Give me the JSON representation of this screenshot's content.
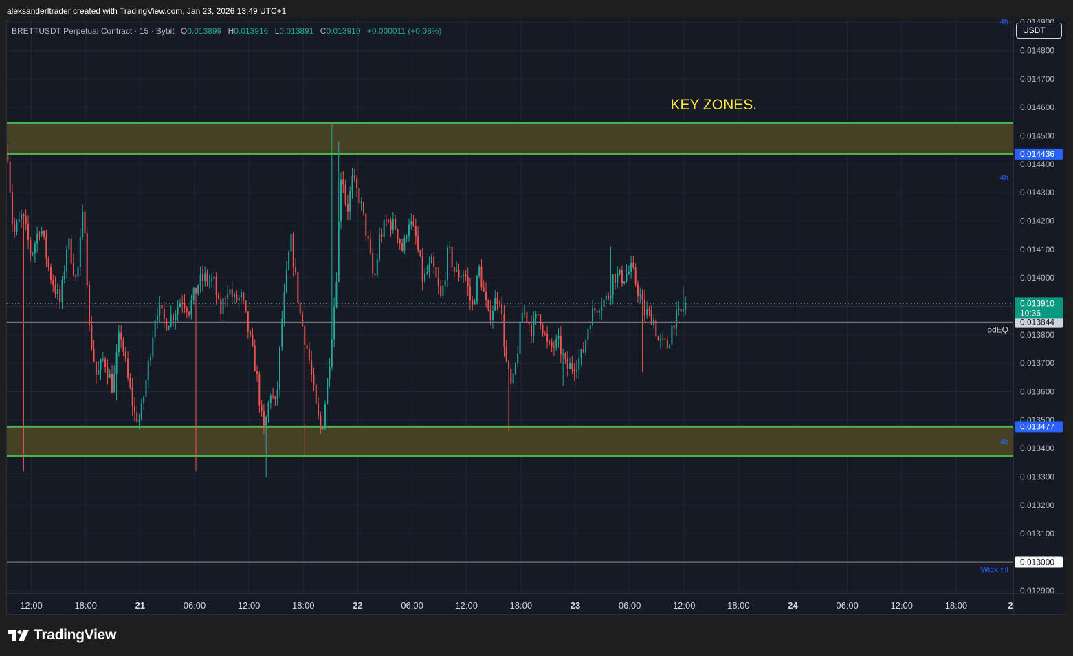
{
  "caption": "aleksanderltrader created with TradingView.com, Jan 23, 2026 13:49 UTC+1",
  "legend": {
    "symbol": "BRETTUSDT Perpetual Contract · 15 · Bybit",
    "open_label": "O",
    "open": "0.013899",
    "high_label": "H",
    "high": "0.013916",
    "low_label": "L",
    "low": "0.013891",
    "close_label": "C",
    "close": "0.013910",
    "change": "+0.000011 (+0.08%)"
  },
  "currency_button": "USDT",
  "footer": {
    "brand": "TradingView"
  },
  "colors": {
    "up": "#26a69a",
    "down": "#ef5350",
    "zone_fill": "#454124",
    "zone_border": "#4caf50",
    "annotation": "#ffeb3b",
    "tag_blue": "#2962ff",
    "tag_last": "#089981"
  },
  "chart_data": {
    "type": "candlestick",
    "grid": true,
    "y_scale": "linear",
    "ylim": [
      0.01289,
      0.01491
    ],
    "y_ticks": [
      "0.014900",
      "0.014800",
      "0.014700",
      "0.014600",
      "0.014500",
      "0.014400",
      "0.014300",
      "0.014200",
      "0.014100",
      "0.014000",
      "0.013900",
      "0.013800",
      "0.013700",
      "0.013600",
      "0.013500",
      "0.013400",
      "0.013300",
      "0.013200",
      "0.013100",
      "0.013000",
      "0.012900"
    ],
    "x_ticks": [
      {
        "label": "12:00",
        "bold": false
      },
      {
        "label": "18:00",
        "bold": false
      },
      {
        "label": "21",
        "bold": true
      },
      {
        "label": "06:00",
        "bold": false
      },
      {
        "label": "12:00",
        "bold": false
      },
      {
        "label": "18:00",
        "bold": false
      },
      {
        "label": "22",
        "bold": true
      },
      {
        "label": "06:00",
        "bold": false
      },
      {
        "label": "12:00",
        "bold": false
      },
      {
        "label": "18:00",
        "bold": false
      },
      {
        "label": "23",
        "bold": true
      },
      {
        "label": "06:00",
        "bold": false
      },
      {
        "label": "12:00",
        "bold": false
      },
      {
        "label": "18:00",
        "bold": false
      },
      {
        "label": "24",
        "bold": true
      },
      {
        "label": "06:00",
        "bold": false
      },
      {
        "label": "12:00",
        "bold": false
      },
      {
        "label": "18:00",
        "bold": false
      },
      {
        "label": "2",
        "bold": true
      }
    ],
    "x_ticks_hours": [
      12,
      18,
      24,
      30,
      36,
      42,
      48,
      54,
      60,
      66,
      72,
      78,
      84,
      90,
      96,
      102,
      108,
      114,
      120
    ],
    "x_range_hours": [
      9.3,
      120.3
    ],
    "series_path": [
      [
        9.4,
        0.01444
      ],
      [
        10.0,
        0.01415
      ],
      [
        11.0,
        0.01422
      ],
      [
        12.0,
        0.01408
      ],
      [
        13.0,
        0.01419
      ],
      [
        14.0,
        0.01402
      ],
      [
        15.2,
        0.01391
      ],
      [
        16.0,
        0.01414
      ],
      [
        17.0,
        0.01398
      ],
      [
        17.8,
        0.01426
      ],
      [
        18.4,
        0.01382
      ],
      [
        19.2,
        0.01365
      ],
      [
        20.0,
        0.01372
      ],
      [
        21.0,
        0.01361
      ],
      [
        21.8,
        0.01382
      ],
      [
        22.6,
        0.01365
      ],
      [
        23.4,
        0.01352
      ],
      [
        24.0,
        0.0135
      ],
      [
        24.8,
        0.01367
      ],
      [
        25.8,
        0.0139
      ],
      [
        26.8,
        0.01384
      ],
      [
        27.8,
        0.01388
      ],
      [
        28.6,
        0.01393
      ],
      [
        29.4,
        0.01389
      ],
      [
        30.4,
        0.01398
      ],
      [
        31.2,
        0.014
      ],
      [
        32.2,
        0.01398
      ],
      [
        32.8,
        0.01387
      ],
      [
        33.6,
        0.01397
      ],
      [
        34.4,
        0.01392
      ],
      [
        35.2,
        0.01393
      ],
      [
        36.0,
        0.0138
      ],
      [
        36.8,
        0.01367
      ],
      [
        37.6,
        0.01345
      ],
      [
        38.4,
        0.0136
      ],
      [
        39.0,
        0.01354
      ],
      [
        39.6,
        0.01384
      ],
      [
        40.6,
        0.01414
      ],
      [
        41.6,
        0.01388
      ],
      [
        42.6,
        0.01372
      ],
      [
        43.4,
        0.01354
      ],
      [
        44.0,
        0.01345
      ],
      [
        44.8,
        0.01368
      ],
      [
        45.6,
        0.01398
      ],
      [
        46.2,
        0.0144
      ],
      [
        46.8,
        0.01423
      ],
      [
        47.4,
        0.01434
      ],
      [
        48.2,
        0.01428
      ],
      [
        49.0,
        0.01415
      ],
      [
        49.8,
        0.01398
      ],
      [
        50.4,
        0.01414
      ],
      [
        51.2,
        0.0142
      ],
      [
        52.2,
        0.01418
      ],
      [
        53.0,
        0.01409
      ],
      [
        53.6,
        0.01421
      ],
      [
        54.4,
        0.01414
      ],
      [
        55.2,
        0.01399
      ],
      [
        56.2,
        0.01405
      ],
      [
        57.2,
        0.01392
      ],
      [
        58.0,
        0.0141
      ],
      [
        58.8,
        0.01401
      ],
      [
        59.8,
        0.01402
      ],
      [
        60.6,
        0.01389
      ],
      [
        61.4,
        0.01403
      ],
      [
        62.4,
        0.01386
      ],
      [
        63.6,
        0.01395
      ],
      [
        64.4,
        0.0137
      ],
      [
        65.0,
        0.0136
      ],
      [
        65.4,
        0.01369
      ],
      [
        66.2,
        0.01389
      ],
      [
        67.2,
        0.01382
      ],
      [
        68.0,
        0.01388
      ],
      [
        69.0,
        0.01375
      ],
      [
        70.2,
        0.01377
      ],
      [
        71.0,
        0.01368
      ],
      [
        72.0,
        0.0137
      ],
      [
        72.8,
        0.01373
      ],
      [
        73.6,
        0.01386
      ],
      [
        74.6,
        0.01391
      ],
      [
        75.6,
        0.01393
      ],
      [
        76.2,
        0.01401
      ],
      [
        77.2,
        0.014
      ],
      [
        78.2,
        0.01403
      ],
      [
        79.0,
        0.01395
      ],
      [
        79.6,
        0.01388
      ],
      [
        80.6,
        0.01386
      ],
      [
        81.2,
        0.01377
      ],
      [
        82.2,
        0.01376
      ],
      [
        82.8,
        0.01385
      ],
      [
        83.6,
        0.01387
      ],
      [
        84.2,
        0.01391
      ]
    ],
    "zones": [
      {
        "top": 0.014545,
        "bottom": 0.014436
      },
      {
        "top": 0.013477,
        "bottom": 0.013375
      }
    ],
    "annotation": {
      "text": "KEY ZONES.",
      "x_hour": 82.5,
      "y": 0.01461
    },
    "levels": [
      {
        "price": 0.013844,
        "label": "pdEQ",
        "color": "#d1d4dc"
      },
      {
        "price": 0.013,
        "label": "Wick fill",
        "color": "#2962ff"
      }
    ],
    "zone_badges": [
      "4h",
      "4h",
      "4h"
    ],
    "last_price": {
      "value": 0.01391,
      "label": "0.013910",
      "countdown": "10:36"
    },
    "price_tags": [
      {
        "price": 0.014436,
        "label": "0.014436",
        "style": "blue"
      },
      {
        "price": 0.013844,
        "label": "0.013844",
        "style": "grey"
      },
      {
        "price": 0.013477,
        "label": "0.013477",
        "style": "blue"
      },
      {
        "price": 0.013,
        "label": "0.013000",
        "style": "white"
      }
    ]
  }
}
